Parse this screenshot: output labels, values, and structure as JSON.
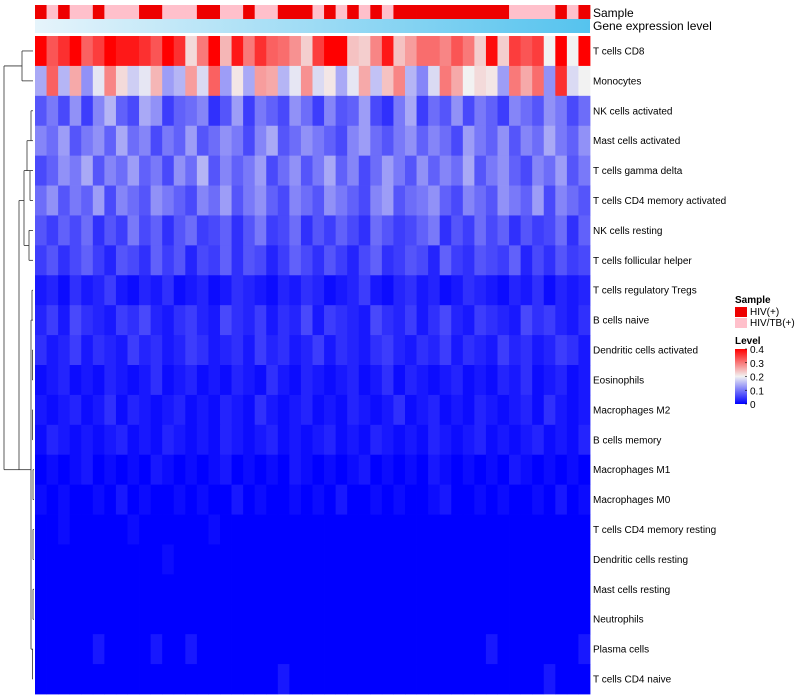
{
  "chart_data": {
    "type": "heatmap",
    "title": "",
    "annotations": {
      "sample_label": "Sample",
      "expression_label": "Gene expression level"
    },
    "rows": [
      "T cells CD8",
      "Monocytes",
      "NK cells activated",
      "Mast cells activated",
      "T cells gamma delta",
      "T cells CD4 memory activated",
      "NK cells resting",
      "T cells follicular helper",
      "T cells regulatory  Tregs",
      "B cells naive",
      "Dendritic cells activated",
      "Eosinophils",
      "Macrophages M2",
      "B cells memory",
      "Macrophages M1",
      "Macrophages M0",
      "T cells CD4 memory resting",
      "Dendritic cells resting",
      "Mast cells resting",
      "Neutrophils",
      "Plasma cells",
      "T cells CD4 naive"
    ],
    "sample_groups": [
      "HIV(+)",
      "HIV/TB(+)",
      "HIV(+)",
      "HIV/TB(+)",
      "HIV/TB(+)",
      "HIV(+)",
      "HIV/TB(+)",
      "HIV/TB(+)",
      "HIV/TB(+)",
      "HIV(+)",
      "HIV(+)",
      "HIV/TB(+)",
      "HIV/TB(+)",
      "HIV/TB(+)",
      "HIV(+)",
      "HIV(+)",
      "HIV/TB(+)",
      "HIV/TB(+)",
      "HIV(+)",
      "HIV/TB(+)",
      "HIV/TB(+)",
      "HIV(+)",
      "HIV(+)",
      "HIV(+)",
      "HIV/TB(+)",
      "HIV(+)",
      "HIV/TB(+)",
      "HIV(+)",
      "HIV/TB(+)",
      "HIV(+)",
      "HIV/TB(+)",
      "HIV(+)",
      "HIV(+)",
      "HIV(+)",
      "HIV(+)",
      "HIV(+)",
      "HIV(+)",
      "HIV(+)",
      "HIV(+)",
      "HIV(+)",
      "HIV(+)",
      "HIV/TB(+)",
      "HIV/TB(+)",
      "HIV/TB(+)",
      "HIV/TB(+)",
      "HIV(+)",
      "HIV/TB(+)",
      "HIV(+)"
    ],
    "legend": {
      "sample_title": "Sample",
      "sample_entries": [
        {
          "label": "HIV(+)",
          "color": "#ee0000"
        },
        {
          "label": "HIV/TB(+)",
          "color": "#ffc0cb"
        }
      ],
      "level_title": "Level",
      "level_ticks": [
        {
          "value": 0.4,
          "label": "0.4"
        },
        {
          "value": 0.3,
          "label": "0.3"
        },
        {
          "value": 0.2,
          "label": "0.2"
        },
        {
          "value": 0.1,
          "label": "0.1"
        },
        {
          "value": 0,
          "label": "0"
        }
      ]
    },
    "color_scale": {
      "min": 0,
      "max": 0.4,
      "low": "#0000ff",
      "mid": "#f2f2f2",
      "high": "#ff0000",
      "mid_value": 0.2
    },
    "values": [
      [
        0.4,
        0.33,
        0.36,
        0.45,
        0.32,
        0.35,
        0.42,
        0.38,
        0.38,
        0.36,
        0.33,
        0.4,
        0.36,
        0.22,
        0.3,
        0.42,
        0.25,
        0.38,
        0.3,
        0.36,
        0.32,
        0.31,
        0.28,
        0.23,
        0.35,
        0.41,
        0.42,
        0.24,
        0.23,
        0.29,
        0.38,
        0.24,
        0.27,
        0.31,
        0.31,
        0.29,
        0.33,
        0.3,
        0.23,
        0.39,
        0.23,
        0.35,
        0.33,
        0.35,
        0.2,
        0.41,
        0.2,
        0.4
      ],
      [
        0.14,
        0.32,
        0.15,
        0.26,
        0.12,
        0.19,
        0.29,
        0.22,
        0.17,
        0.19,
        0.25,
        0.13,
        0.15,
        0.27,
        0.18,
        0.32,
        0.13,
        0.21,
        0.14,
        0.27,
        0.26,
        0.15,
        0.19,
        0.28,
        0.18,
        0.21,
        0.14,
        0.19,
        0.26,
        0.16,
        0.24,
        0.29,
        0.15,
        0.11,
        0.18,
        0.3,
        0.26,
        0.2,
        0.22,
        0.21,
        0.13,
        0.3,
        0.26,
        0.31,
        0.12,
        0.36,
        0.18,
        0.2
      ],
      [
        0.07,
        0.1,
        0.06,
        0.12,
        0.05,
        0.11,
        0.15,
        0.08,
        0.06,
        0.14,
        0.12,
        0.05,
        0.08,
        0.09,
        0.11,
        0.04,
        0.07,
        0.13,
        0.05,
        0.1,
        0.08,
        0.06,
        0.12,
        0.09,
        0.05,
        0.11,
        0.07,
        0.08,
        0.13,
        0.06,
        0.04,
        0.1,
        0.14,
        0.05,
        0.09,
        0.07,
        0.12,
        0.06,
        0.1,
        0.08,
        0.05,
        0.11,
        0.09,
        0.07,
        0.12,
        0.1,
        0.06,
        0.09
      ],
      [
        0.11,
        0.09,
        0.13,
        0.07,
        0.1,
        0.12,
        0.08,
        0.14,
        0.09,
        0.11,
        0.06,
        0.1,
        0.08,
        0.13,
        0.07,
        0.09,
        0.12,
        0.1,
        0.06,
        0.11,
        0.14,
        0.07,
        0.09,
        0.12,
        0.1,
        0.08,
        0.06,
        0.11,
        0.13,
        0.09,
        0.07,
        0.1,
        0.12,
        0.08,
        0.11,
        0.09,
        0.06,
        0.13,
        0.1,
        0.08,
        0.12,
        0.07,
        0.11,
        0.09,
        0.14,
        0.1,
        0.08,
        0.12
      ],
      [
        0.06,
        0.08,
        0.12,
        0.1,
        0.14,
        0.07,
        0.11,
        0.09,
        0.13,
        0.08,
        0.1,
        0.06,
        0.12,
        0.09,
        0.15,
        0.07,
        0.11,
        0.08,
        0.1,
        0.13,
        0.06,
        0.09,
        0.12,
        0.07,
        0.1,
        0.14,
        0.08,
        0.11,
        0.06,
        0.09,
        0.13,
        0.1,
        0.07,
        0.12,
        0.08,
        0.11,
        0.09,
        0.14,
        0.07,
        0.1,
        0.12,
        0.08,
        0.06,
        0.11,
        0.09,
        0.13,
        0.07,
        0.1
      ],
      [
        0.09,
        0.12,
        0.07,
        0.1,
        0.08,
        0.13,
        0.06,
        0.11,
        0.09,
        0.07,
        0.12,
        0.1,
        0.08,
        0.06,
        0.11,
        0.09,
        0.13,
        0.07,
        0.1,
        0.12,
        0.08,
        0.06,
        0.11,
        0.09,
        0.07,
        0.12,
        0.1,
        0.08,
        0.06,
        0.11,
        0.13,
        0.07,
        0.09,
        0.1,
        0.12,
        0.08,
        0.06,
        0.11,
        0.09,
        0.07,
        0.12,
        0.1,
        0.08,
        0.13,
        0.06,
        0.11,
        0.09,
        0.07
      ],
      [
        0.07,
        0.05,
        0.08,
        0.06,
        0.09,
        0.04,
        0.07,
        0.05,
        0.1,
        0.06,
        0.08,
        0.04,
        0.07,
        0.09,
        0.05,
        0.06,
        0.08,
        0.04,
        0.07,
        0.1,
        0.05,
        0.06,
        0.09,
        0.04,
        0.07,
        0.05,
        0.08,
        0.06,
        0.04,
        0.09,
        0.07,
        0.05,
        0.06,
        0.08,
        0.1,
        0.04,
        0.07,
        0.05,
        0.09,
        0.06,
        0.08,
        0.04,
        0.07,
        0.05,
        0.06,
        0.09,
        0.04,
        0.08
      ],
      [
        0.05,
        0.07,
        0.04,
        0.06,
        0.08,
        0.05,
        0.03,
        0.07,
        0.06,
        0.04,
        0.08,
        0.05,
        0.07,
        0.03,
        0.06,
        0.05,
        0.08,
        0.04,
        0.07,
        0.06,
        0.03,
        0.05,
        0.08,
        0.06,
        0.04,
        0.07,
        0.05,
        0.03,
        0.06,
        0.08,
        0.04,
        0.05,
        0.07,
        0.06,
        0.03,
        0.08,
        0.05,
        0.04,
        0.07,
        0.06,
        0.05,
        0.08,
        0.03,
        0.06,
        0.04,
        0.07,
        0.05,
        0.06
      ],
      [
        0.02,
        0.03,
        0.01,
        0.04,
        0.02,
        0.03,
        0.05,
        0.02,
        0.01,
        0.03,
        0.02,
        0.04,
        0.01,
        0.02,
        0.03,
        0.01,
        0.02,
        0.04,
        0.03,
        0.02,
        0.01,
        0.03,
        0.02,
        0.04,
        0.03,
        0.01,
        0.02,
        0.03,
        0.05,
        0.02,
        0.01,
        0.03,
        0.04,
        0.02,
        0.03,
        0.01,
        0.02,
        0.04,
        0.03,
        0.02,
        0.01,
        0.03,
        0.02,
        0.04,
        0.01,
        0.03,
        0.02,
        0.03
      ],
      [
        0.03,
        0.05,
        0.02,
        0.06,
        0.04,
        0.03,
        0.02,
        0.05,
        0.04,
        0.06,
        0.03,
        0.02,
        0.04,
        0.05,
        0.03,
        0.02,
        0.06,
        0.04,
        0.03,
        0.05,
        0.02,
        0.04,
        0.03,
        0.06,
        0.02,
        0.05,
        0.04,
        0.03,
        0.02,
        0.06,
        0.04,
        0.03,
        0.05,
        0.02,
        0.04,
        0.06,
        0.03,
        0.02,
        0.05,
        0.04,
        0.03,
        0.02,
        0.06,
        0.04,
        0.05,
        0.03,
        0.02,
        0.04
      ],
      [
        0.04,
        0.02,
        0.03,
        0.05,
        0.02,
        0.04,
        0.03,
        0.02,
        0.05,
        0.03,
        0.04,
        0.02,
        0.03,
        0.05,
        0.04,
        0.02,
        0.03,
        0.04,
        0.02,
        0.05,
        0.03,
        0.04,
        0.02,
        0.03,
        0.05,
        0.02,
        0.04,
        0.03,
        0.02,
        0.04,
        0.05,
        0.03,
        0.02,
        0.04,
        0.03,
        0.05,
        0.02,
        0.04,
        0.03,
        0.02,
        0.05,
        0.03,
        0.04,
        0.02,
        0.03,
        0.05,
        0.04,
        0.02
      ],
      [
        0.01,
        0.02,
        0.03,
        0.01,
        0.02,
        0.01,
        0.03,
        0.02,
        0.01,
        0.02,
        0.04,
        0.01,
        0.02,
        0.03,
        0.01,
        0.02,
        0.01,
        0.03,
        0.02,
        0.01,
        0.04,
        0.02,
        0.01,
        0.03,
        0.02,
        0.01,
        0.02,
        0.03,
        0.01,
        0.02,
        0.04,
        0.01,
        0.03,
        0.02,
        0.01,
        0.02,
        0.03,
        0.01,
        0.02,
        0.01,
        0.03,
        0.02,
        0.04,
        0.01,
        0.02,
        0.03,
        0.01,
        0.02
      ],
      [
        0.02,
        0.01,
        0.02,
        0.03,
        0.01,
        0.02,
        0.04,
        0.01,
        0.03,
        0.02,
        0.01,
        0.02,
        0.03,
        0.01,
        0.02,
        0.01,
        0.03,
        0.02,
        0.01,
        0.04,
        0.02,
        0.01,
        0.02,
        0.03,
        0.01,
        0.02,
        0.01,
        0.03,
        0.02,
        0.01,
        0.02,
        0.04,
        0.01,
        0.02,
        0.03,
        0.01,
        0.02,
        0.01,
        0.03,
        0.02,
        0.01,
        0.02,
        0.03,
        0.01,
        0.04,
        0.02,
        0.01,
        0.02
      ],
      [
        0.01,
        0.03,
        0.02,
        0.01,
        0.02,
        0.01,
        0.02,
        0.03,
        0.01,
        0.02,
        0.01,
        0.03,
        0.02,
        0.01,
        0.02,
        0.01,
        0.03,
        0.02,
        0.01,
        0.02,
        0.03,
        0.01,
        0.02,
        0.01,
        0.02,
        0.03,
        0.01,
        0.02,
        0.01,
        0.03,
        0.02,
        0.01,
        0.02,
        0.01,
        0.03,
        0.02,
        0.01,
        0.02,
        0.03,
        0.01,
        0.02,
        0.01,
        0.02,
        0.03,
        0.01,
        0.02,
        0.01,
        0.03
      ],
      [
        0.0,
        0.01,
        0.0,
        0.01,
        0.02,
        0.0,
        0.01,
        0.0,
        0.01,
        0.0,
        0.02,
        0.01,
        0.0,
        0.01,
        0.0,
        0.01,
        0.02,
        0.0,
        0.01,
        0.0,
        0.01,
        0.0,
        0.02,
        0.01,
        0.0,
        0.01,
        0.0,
        0.01,
        0.02,
        0.0,
        0.01,
        0.0,
        0.01,
        0.0,
        0.02,
        0.01,
        0.0,
        0.01,
        0.0,
        0.01,
        0.0,
        0.02,
        0.01,
        0.0,
        0.01,
        0.0,
        0.01,
        0.0
      ],
      [
        0.01,
        0.0,
        0.01,
        0.0,
        0.0,
        0.01,
        0.0,
        0.02,
        0.0,
        0.01,
        0.0,
        0.0,
        0.01,
        0.0,
        0.01,
        0.0,
        0.0,
        0.02,
        0.0,
        0.01,
        0.0,
        0.0,
        0.01,
        0.0,
        0.01,
        0.0,
        0.02,
        0.0,
        0.0,
        0.01,
        0.0,
        0.01,
        0.0,
        0.0,
        0.01,
        0.02,
        0.0,
        0.0,
        0.01,
        0.0,
        0.01,
        0.0,
        0.0,
        0.01,
        0.0,
        0.02,
        0.0,
        0.01
      ],
      [
        0.0,
        0.0,
        0.01,
        0.0,
        0.0,
        0.0,
        0.0,
        0.0,
        0.01,
        0.0,
        0.0,
        0.0,
        0.0,
        0.0,
        0.0,
        0.01,
        0.0,
        0.0,
        0.0,
        0.0,
        0.0,
        0.0,
        0.0,
        0.0,
        0.0,
        0.0,
        0.0,
        0.0,
        0.0,
        0.0,
        0.0,
        0.0,
        0.0,
        0.0,
        0.0,
        0.0,
        0.0,
        0.0,
        0.0,
        0.0,
        0.0,
        0.0,
        0.0,
        0.0,
        0.0,
        0.0,
        0.0,
        0.0
      ],
      [
        0.0,
        0.0,
        0.0,
        0.0,
        0.0,
        0.0,
        0.0,
        0.0,
        0.0,
        0.0,
        0.0,
        0.01,
        0.0,
        0.0,
        0.0,
        0.0,
        0.0,
        0.0,
        0.0,
        0.0,
        0.0,
        0.0,
        0.0,
        0.0,
        0.0,
        0.0,
        0.0,
        0.0,
        0.0,
        0.0,
        0.0,
        0.0,
        0.0,
        0.0,
        0.0,
        0.0,
        0.0,
        0.0,
        0.0,
        0.0,
        0.0,
        0.0,
        0.0,
        0.0,
        0.0,
        0.0,
        0.0,
        0.0
      ],
      [
        0.0,
        0.0,
        0.0,
        0.0,
        0.0,
        0.0,
        0.0,
        0.0,
        0.0,
        0.0,
        0.0,
        0.0,
        0.0,
        0.0,
        0.0,
        0.0,
        0.0,
        0.0,
        0.0,
        0.0,
        0.0,
        0.0,
        0.0,
        0.0,
        0.0,
        0.0,
        0.0,
        0.0,
        0.0,
        0.0,
        0.0,
        0.0,
        0.0,
        0.0,
        0.0,
        0.0,
        0.0,
        0.0,
        0.0,
        0.0,
        0.0,
        0.0,
        0.0,
        0.0,
        0.0,
        0.0,
        0.0,
        0.0
      ],
      [
        0.0,
        0.0,
        0.0,
        0.0,
        0.0,
        0.0,
        0.0,
        0.0,
        0.0,
        0.0,
        0.0,
        0.0,
        0.0,
        0.0,
        0.0,
        0.0,
        0.0,
        0.0,
        0.0,
        0.0,
        0.0,
        0.0,
        0.0,
        0.0,
        0.0,
        0.0,
        0.0,
        0.0,
        0.0,
        0.0,
        0.0,
        0.0,
        0.0,
        0.0,
        0.0,
        0.0,
        0.0,
        0.0,
        0.0,
        0.0,
        0.0,
        0.0,
        0.0,
        0.0,
        0.0,
        0.0,
        0.0,
        0.0
      ],
      [
        0.0,
        0.0,
        0.0,
        0.0,
        0.0,
        0.02,
        0.0,
        0.0,
        0.0,
        0.0,
        0.02,
        0.0,
        0.0,
        0.02,
        0.0,
        0.0,
        0.0,
        0.0,
        0.0,
        0.0,
        0.0,
        0.0,
        0.0,
        0.0,
        0.0,
        0.0,
        0.0,
        0.0,
        0.0,
        0.0,
        0.0,
        0.0,
        0.0,
        0.0,
        0.0,
        0.0,
        0.0,
        0.0,
        0.0,
        0.02,
        0.0,
        0.0,
        0.0,
        0.0,
        0.0,
        0.0,
        0.0,
        0.02
      ],
      [
        0.0,
        0.0,
        0.0,
        0.0,
        0.0,
        0.0,
        0.0,
        0.0,
        0.0,
        0.0,
        0.0,
        0.0,
        0.0,
        0.0,
        0.0,
        0.0,
        0.0,
        0.0,
        0.0,
        0.0,
        0.0,
        0.02,
        0.0,
        0.0,
        0.0,
        0.0,
        0.0,
        0.0,
        0.0,
        0.0,
        0.0,
        0.0,
        0.0,
        0.0,
        0.0,
        0.0,
        0.0,
        0.0,
        0.0,
        0.0,
        0.0,
        0.0,
        0.0,
        0.0,
        0.02,
        0.0,
        0.0,
        0.0
      ]
    ]
  }
}
